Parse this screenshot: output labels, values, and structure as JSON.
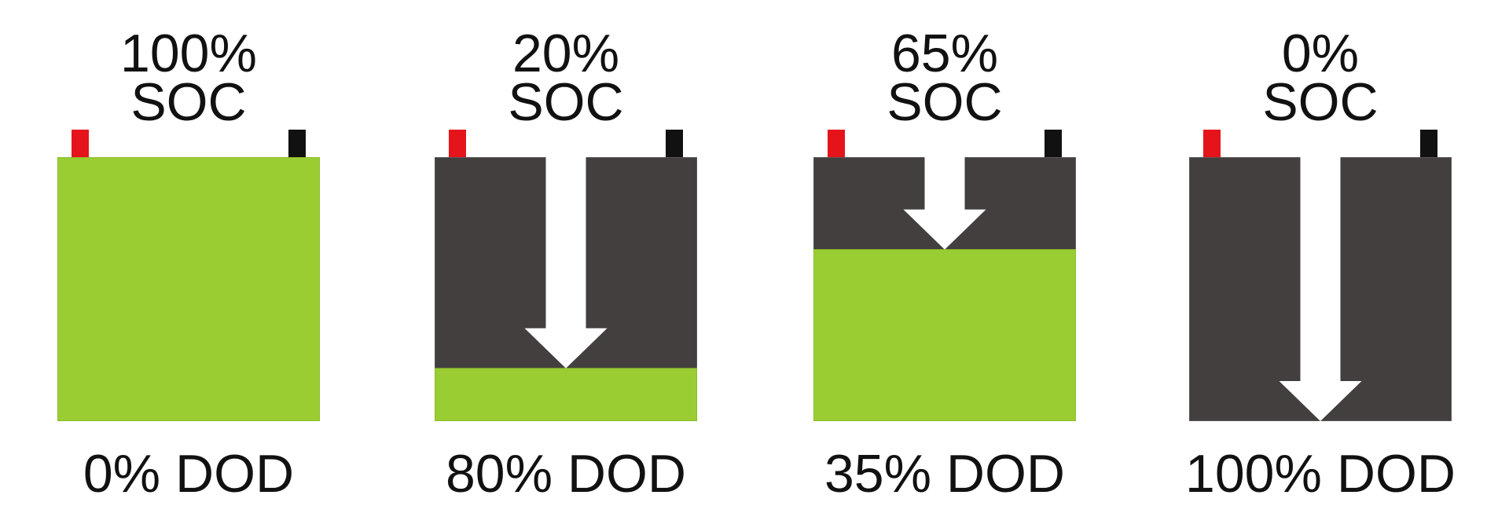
{
  "colors": {
    "charge": "#9acd32",
    "charge_edge": "#8cbc2c",
    "empty": "#433f3f",
    "empty_edge": "#5a5656",
    "positive_terminal": "#e5141b",
    "negative_terminal": "#111111",
    "arrow": "#ffffff",
    "text": "#111111"
  },
  "batteries": [
    {
      "soc_label": "100%",
      "soc_text": "SOC",
      "dod_label": "0% DOD",
      "state_of_charge": 1.0
    },
    {
      "soc_label": "20%",
      "soc_text": "SOC",
      "dod_label": "80% DOD",
      "state_of_charge": 0.2
    },
    {
      "soc_label": "65%",
      "soc_text": "SOC",
      "dod_label": "35% DOD",
      "state_of_charge": 0.65
    },
    {
      "soc_label": "0%",
      "soc_text": "SOC",
      "dod_label": "100% DOD",
      "state_of_charge": 0.0
    }
  ]
}
